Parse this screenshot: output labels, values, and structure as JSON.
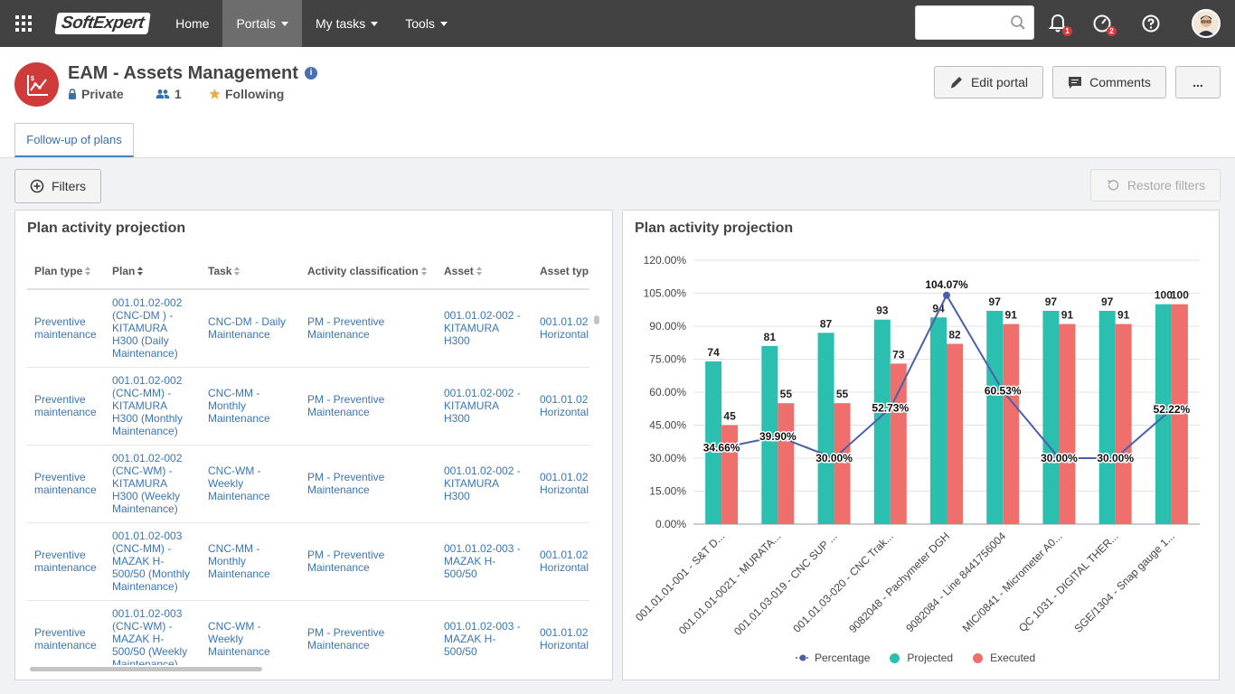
{
  "nav": {
    "logo": "SoftExpert",
    "items": [
      "Home",
      "Portals",
      "My tasks",
      "Tools"
    ],
    "active_index": 1,
    "search_placeholder": "",
    "notifications_badge": "1",
    "workflow_badge": "2"
  },
  "header": {
    "title": "EAM - Assets Management",
    "privacy": "Private",
    "members": "1",
    "following": "Following",
    "edit_portal": "Edit portal",
    "comments": "Comments",
    "more": "..."
  },
  "tabs": [
    "Follow-up of plans"
  ],
  "toolbar": {
    "filters": "Filters",
    "restore_filters": "Restore filters"
  },
  "table_panel": {
    "title": "Plan activity projection",
    "columns": [
      "Plan type",
      "Plan",
      "Task",
      "Activity classification",
      "Asset",
      "Asset typ"
    ],
    "rows": [
      [
        "Preventive maintenance",
        "001.01.02-002 (CNC-DM ) - KITAMURA H300 (Daily Maintenance)",
        "CNC-DM - Daily Maintenance",
        "PM - Preventive Maintenance",
        "001.01.02-002 - KITAMURA H300",
        "001.01.02 Horizontal"
      ],
      [
        "Preventive maintenance",
        "001.01.02-002 (CNC-MM) - KITAMURA H300 (Monthly Maintenance)",
        "CNC-MM - Monthly Maintenance",
        "PM - Preventive Maintenance",
        "001.01.02-002 - KITAMURA H300",
        "001.01.02 Horizontal"
      ],
      [
        "Preventive maintenance",
        "001.01.02-002 (CNC-WM) - KITAMURA H300 (Weekly Maintenance)",
        "CNC-WM - Weekly Maintenance",
        "PM - Preventive Maintenance",
        "001.01.02-002 - KITAMURA H300",
        "001.01.02 Horizontal"
      ],
      [
        "Preventive maintenance",
        "001.01.02-003 (CNC-MM) - MAZAK H-500/50 (Monthly Maintenance)",
        "CNC-MM - Monthly Maintenance",
        "PM - Preventive Maintenance",
        "001.01.02-003 - MAZAK H-500/50",
        "001.01.02 Horizontal"
      ],
      [
        "Preventive maintenance",
        "001.01.02-003 (CNC-WM) - MAZAK H-500/50 (Weekly Maintenance)",
        "CNC-WM - Weekly Maintenance",
        "PM - Preventive Maintenance",
        "001.01.02-003 - MAZAK H-500/50",
        "001.01.02 Horizontal"
      ]
    ]
  },
  "chart_panel": {
    "title": "Plan activity projection"
  },
  "chart_data": {
    "type": "bar",
    "categories": [
      "001.01.01-001 - S&T D...",
      "001.01.01-0021 - MURATA...",
      "001.01.03-019 - CNC SUP ...",
      "001.01.03-020 - CNC Trak...",
      "9082048 - Pachymeter DGH",
      "9082084 - Line 8441756004",
      "MIC/0841 - Micrometer A0...",
      "QC 1031 - DIGITAL THER...",
      "SGE/1304 - Snap gauge 1..."
    ],
    "series": [
      {
        "name": "Percentage",
        "type": "line",
        "values": [
          34.66,
          39.9,
          30.0,
          52.73,
          104.07,
          60.53,
          30.0,
          30.0,
          52.22
        ],
        "color": "#4a5fa8"
      },
      {
        "name": "Projected",
        "type": "bar",
        "values": [
          74,
          81,
          87,
          93,
          94,
          97,
          97,
          97,
          100
        ],
        "color": "#2bbfb0"
      },
      {
        "name": "Executed",
        "type": "bar",
        "values": [
          45,
          55,
          55,
          73,
          82,
          91,
          91,
          91,
          100
        ],
        "color": "#ef6f6c"
      }
    ],
    "percentage_labels": [
      "34.66%",
      "39.90%",
      "30.00%",
      "52.73%",
      "104.07%",
      "60.53%",
      "30.00%",
      "30.00%",
      "52.22%"
    ],
    "y_ticks": [
      "0.00%",
      "15.00%",
      "30.00%",
      "45.00%",
      "60.00%",
      "75.00%",
      "90.00%",
      "105.00%",
      "120.00%"
    ],
    "ylim": [
      0,
      120
    ],
    "grid": true,
    "legend": "bottom"
  }
}
